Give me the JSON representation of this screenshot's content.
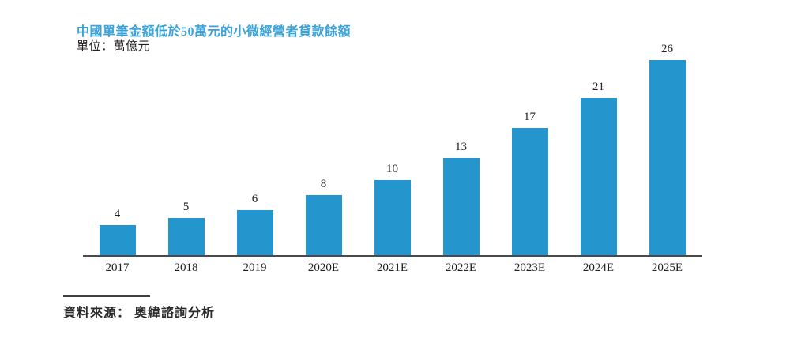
{
  "header": {
    "title": "中國單筆金額低於50萬元的小微經營者貸款餘額",
    "unit_label": "單位：萬億元"
  },
  "chart_data": {
    "type": "bar",
    "title": "中國單筆金額低於50萬元的小微經營者貸款餘額",
    "unit": "萬億元",
    "categories": [
      "2017",
      "2018",
      "2019",
      "2020E",
      "2021E",
      "2022E",
      "2023E",
      "2024E",
      "2025E"
    ],
    "values": [
      4,
      5,
      6,
      8,
      10,
      13,
      17,
      21,
      26
    ],
    "xlabel": "",
    "ylabel": "",
    "ylim": [
      0,
      28
    ],
    "gridlines": false,
    "legend_position": "none",
    "value_labels_shown": true,
    "bar_color": "#2596cd"
  },
  "footer": {
    "source_text": "資料來源： 奧緯諮詢分析"
  },
  "colors": {
    "title_blue": "#39a2d8",
    "bar_blue": "#2596cd",
    "axis": "#4a4a4c",
    "text": "#231f20"
  }
}
